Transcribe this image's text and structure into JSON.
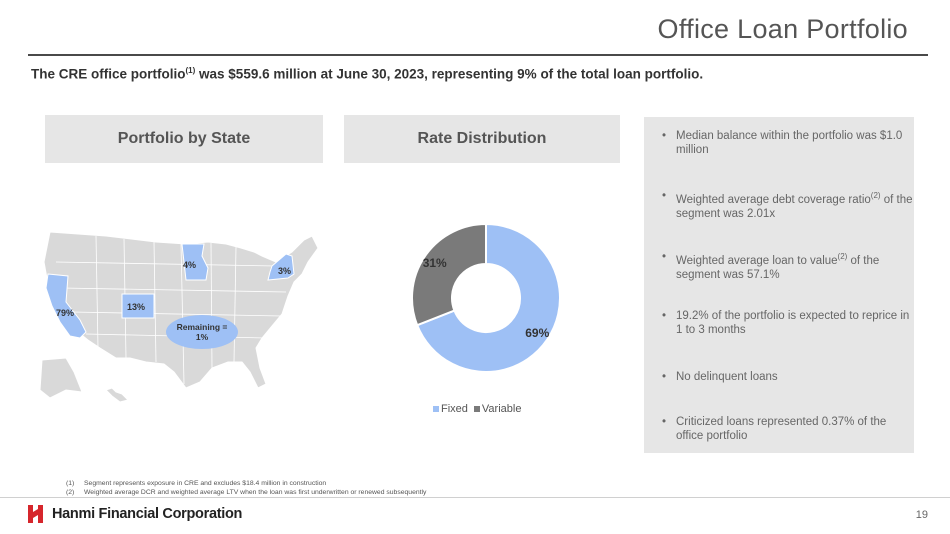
{
  "title": "Office Loan Portfolio",
  "subtitle": {
    "before": "The CRE office portfolio",
    "sup": "(1)",
    "after": " was $559.6 million at June 30, 2023, representing 9% of the total loan portfolio."
  },
  "sections": {
    "state_header": "Portfolio by State",
    "rate_header": "Rate Distribution"
  },
  "map": {
    "labels": {
      "ca": "79%",
      "co": "13%",
      "mn": "4%",
      "ny": "3%"
    },
    "remaining": {
      "line1": "Remaining =",
      "line2": "1%"
    },
    "colors": {
      "highlight": "#9ec0f5",
      "states": "#d9d9d9"
    }
  },
  "chart_data": {
    "type": "pie",
    "title": "",
    "categories": [
      "Fixed",
      "Variable"
    ],
    "values": [
      69,
      31
    ],
    "labels": [
      "69%",
      "31%"
    ],
    "colors": [
      "#9ec0f5",
      "#7a7a7a"
    ],
    "legend_position": "bottom",
    "donut": true
  },
  "bullets": [
    {
      "text": "Median balance within the portfolio was $1.0 million"
    },
    {
      "before": "Weighted average debt coverage ratio",
      "sup": "(2)",
      "after": " of the segment was 2.01x"
    },
    {
      "before": "Weighted average loan to value",
      "sup": "(2)",
      "after": " of the segment was 57.1%"
    },
    {
      "text": "19.2% of the portfolio is expected to reprice in 1 to 3 months"
    },
    {
      "text": "No delinquent loans"
    },
    {
      "text": "Criticized loans represented 0.37% of the office portfolio"
    }
  ],
  "footnotes": [
    {
      "num": "(1)",
      "text": "Segment represents exposure in CRE and excludes $18.4 million in construction"
    },
    {
      "num": "(2)",
      "text": "Weighted average DCR and weighted average LTV when the loan was first underwritten or renewed subsequently"
    }
  ],
  "footer": {
    "company": "Hanmi Financial Corporation",
    "page": "19",
    "logo_color": "#d6262c"
  }
}
